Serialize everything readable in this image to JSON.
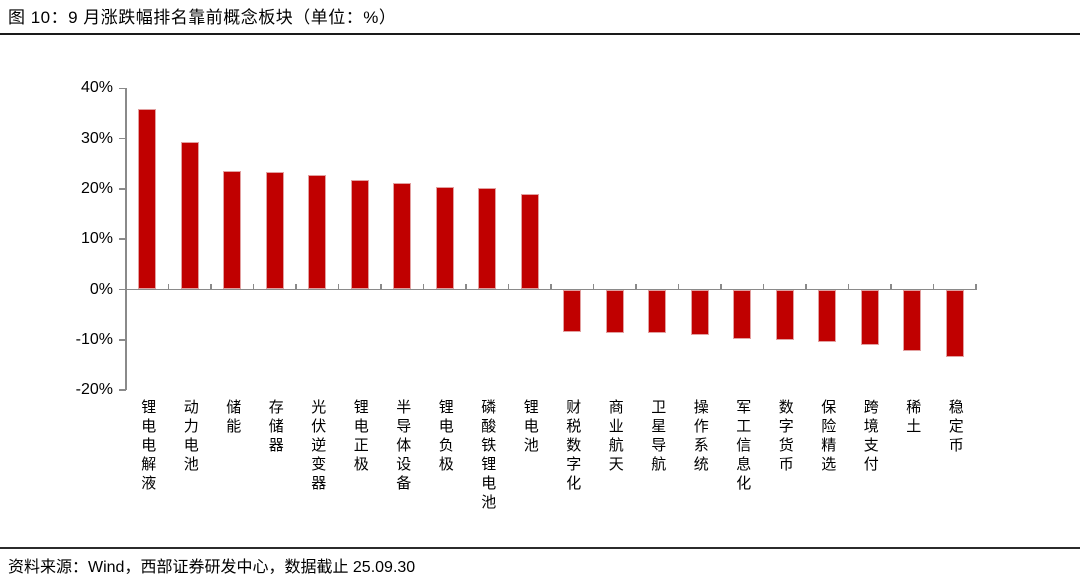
{
  "title": "图 10：9 月涨跌幅排名靠前概念板块（单位：%）",
  "footer": {
    "source": "资料来源：Wind，西部证券研发中心，数据截止 25.09.30"
  },
  "colors": {
    "bar_fill": "#C00000",
    "bar_border": "#E2A0A0",
    "axis": "#8a8a8a",
    "text": "#000000"
  },
  "chart_data": {
    "type": "bar",
    "title": "9 月涨跌幅排名靠前概念板块",
    "unit": "%",
    "categories": [
      "锂电电解液",
      "动力电池",
      "储能",
      "存储器",
      "光伏逆变器",
      "锂电正极",
      "半导体设备",
      "锂电负极",
      "磷酸铁锂电池",
      "锂电池",
      "财税数字化",
      "商业航天",
      "卫星导航",
      "操作系统",
      "军工信息化",
      "数字货币",
      "保险精选",
      "跨境支付",
      "稀土",
      "稳定币"
    ],
    "values": [
      35.8,
      29.4,
      23.6,
      23.3,
      22.8,
      21.8,
      21.2,
      20.4,
      20.2,
      19.0,
      -8.5,
      -8.7,
      -8.7,
      -9.0,
      -9.9,
      -10.0,
      -10.5,
      -11.0,
      -12.2,
      -13.4
    ],
    "ylim": [
      -20,
      40
    ],
    "y_tick_values": [
      40,
      30,
      20,
      10,
      0,
      -10,
      -20
    ],
    "y_tick_labels": [
      "40%",
      "30%",
      "20%",
      "10%",
      "0%",
      "-10%",
      "-20%"
    ],
    "grid": false,
    "legend_position": "none"
  }
}
